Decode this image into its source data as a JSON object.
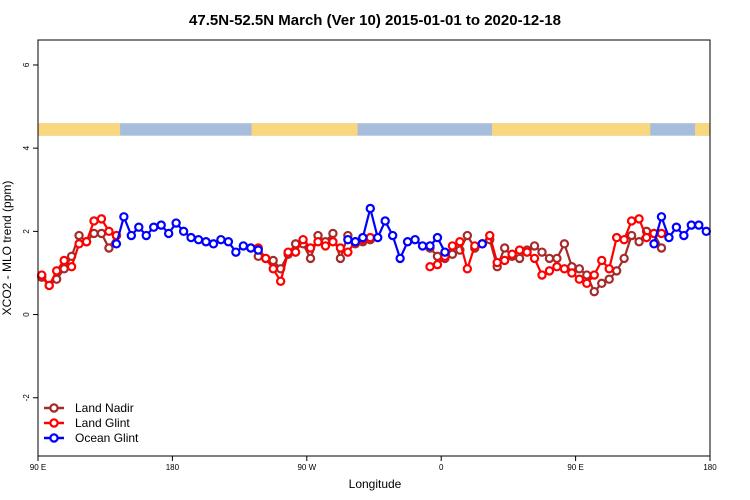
{
  "chart_data": {
    "type": "line",
    "title": "47.5N-52.5N March (Ver 10)   2015-01-01 to 2020-12-18",
    "xlabel": "Longitude",
    "ylabel": "XCO2 - MLO trend (ppm)",
    "xlim": [
      90,
      540
    ],
    "ylim": [
      -3.4,
      6.6
    ],
    "x_ticks": [
      {
        "value": 90,
        "label": "90 E"
      },
      {
        "value": 180,
        "label": "180"
      },
      {
        "value": 270,
        "label": "90 W"
      },
      {
        "value": 360,
        "label": "0"
      },
      {
        "value": 450,
        "label": "90 E"
      },
      {
        "value": 540,
        "label": "180"
      }
    ],
    "y_ticks": [
      {
        "value": -2,
        "label": "-2"
      },
      {
        "value": 0,
        "label": "0"
      },
      {
        "value": 2,
        "label": "2"
      },
      {
        "value": 4,
        "label": "4"
      },
      {
        "value": 6,
        "label": "6"
      }
    ],
    "land_ocean_strip": {
      "y_range": [
        4.3,
        4.6
      ],
      "colors": {
        "land": "#f9d77e",
        "ocean": "#a6bddb"
      },
      "land_intervals": [
        [
          90,
          145
        ],
        [
          233,
          304
        ],
        [
          394,
          500
        ],
        [
          530,
          540
        ]
      ]
    },
    "legend": {
      "position": "bottom-left"
    },
    "series": [
      {
        "name": "Land Nadir",
        "color": "#a52a2a",
        "x": [
          92.5,
          97.5,
          102.5,
          107.5,
          112.5,
          117.5,
          122.5,
          127.5,
          132.5,
          137.5,
          142.5,
          237.5,
          242.5,
          247.5,
          252.5,
          257.5,
          262.5,
          267.5,
          272.5,
          277.5,
          282.5,
          287.5,
          292.5,
          297.5,
          302.5,
          307.5,
          312.5,
          352.5,
          357.5,
          362.5,
          367.5,
          372.5,
          377.5,
          382.5,
          387.5,
          392.5,
          397.5,
          402.5,
          407.5,
          412.5,
          417.5,
          422.5,
          427.5,
          432.5,
          437.5,
          442.5,
          447.5,
          452.5,
          457.5,
          462.5,
          467.5,
          472.5,
          477.5,
          482.5,
          487.5,
          492.5,
          497.5,
          502.5,
          507.5
        ],
        "values": [
          0.9,
          0.7,
          0.85,
          1.1,
          1.4,
          1.9,
          1.75,
          1.95,
          1.95,
          1.6,
          1.9,
          1.4,
          1.35,
          1.3,
          1.1,
          1.45,
          1.7,
          1.7,
          1.35,
          1.9,
          1.75,
          1.95,
          1.35,
          1.9,
          1.7,
          1.75,
          1.8,
          1.6,
          1.4,
          1.35,
          1.45,
          1.55,
          1.9,
          1.6,
          1.7,
          1.8,
          1.15,
          1.6,
          1.4,
          1.35,
          1.55,
          1.65,
          1.5,
          1.35,
          1.35,
          1.7,
          1.15,
          1.1,
          0.95,
          0.55,
          0.75,
          0.85,
          1.05,
          1.35,
          1.9,
          1.75,
          2.0,
          1.95,
          1.6
        ]
      },
      {
        "name": "Land Glint",
        "color": "#ff0000",
        "x": [
          92.5,
          97.5,
          102.5,
          107.5,
          112.5,
          117.5,
          122.5,
          127.5,
          132.5,
          137.5,
          142.5,
          237.5,
          242.5,
          247.5,
          252.5,
          257.5,
          262.5,
          267.5,
          272.5,
          277.5,
          282.5,
          287.5,
          292.5,
          297.5,
          302.5,
          307.5,
          312.5,
          352.5,
          357.5,
          362.5,
          367.5,
          372.5,
          377.5,
          382.5,
          387.5,
          392.5,
          397.5,
          402.5,
          407.5,
          412.5,
          417.5,
          422.5,
          427.5,
          432.5,
          437.5,
          442.5,
          447.5,
          452.5,
          457.5,
          462.5,
          467.5,
          472.5,
          477.5,
          482.5,
          487.5,
          492.5,
          497.5,
          502.5,
          507.5
        ],
        "values": [
          0.95,
          0.7,
          1.05,
          1.3,
          1.15,
          1.7,
          1.75,
          2.25,
          2.3,
          2.0,
          1.9,
          1.6,
          1.35,
          1.1,
          0.8,
          1.5,
          1.5,
          1.8,
          1.6,
          1.75,
          1.65,
          1.75,
          1.6,
          1.5,
          1.75,
          1.8,
          1.85,
          1.15,
          1.2,
          1.4,
          1.65,
          1.75,
          1.1,
          1.65,
          1.7,
          1.9,
          1.25,
          1.3,
          1.45,
          1.55,
          1.5,
          1.35,
          0.95,
          1.05,
          1.15,
          1.1,
          1.0,
          0.85,
          0.75,
          0.95,
          1.3,
          1.1,
          1.85,
          1.8,
          2.25,
          2.3,
          1.85,
          1.95,
          1.95
        ]
      },
      {
        "name": "Ocean Glint",
        "color": "#0000ff",
        "x": [
          142.5,
          147.5,
          152.5,
          157.5,
          162.5,
          167.5,
          172.5,
          177.5,
          182.5,
          187.5,
          192.5,
          197.5,
          202.5,
          207.5,
          212.5,
          217.5,
          222.5,
          227.5,
          232.5,
          237.5,
          297.5,
          302.5,
          307.5,
          312.5,
          317.5,
          322.5,
          327.5,
          332.5,
          337.5,
          342.5,
          347.5,
          352.5,
          357.5,
          362.5,
          387.5,
          502.5,
          507.5,
          512.5,
          517.5,
          522.5,
          527.5,
          532.5,
          537.5
        ],
        "values": [
          1.7,
          2.35,
          1.9,
          2.1,
          1.9,
          2.1,
          2.15,
          1.95,
          2.2,
          2.0,
          1.85,
          1.8,
          1.75,
          1.7,
          1.8,
          1.75,
          1.5,
          1.65,
          1.6,
          1.55,
          1.8,
          1.75,
          1.85,
          2.55,
          1.85,
          2.25,
          1.9,
          1.35,
          1.75,
          1.8,
          1.65,
          1.65,
          1.85,
          1.5,
          1.7,
          1.7,
          2.35,
          1.85,
          2.1,
          1.9,
          2.15,
          2.15,
          2.0
        ]
      }
    ]
  }
}
